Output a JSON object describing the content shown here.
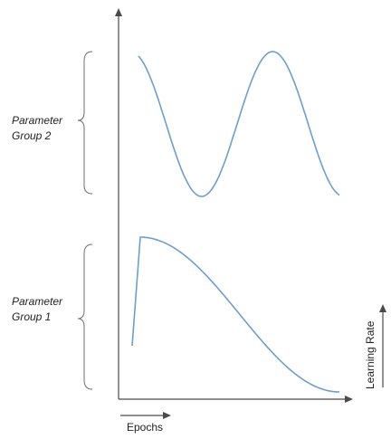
{
  "chart_data": [
    {
      "type": "line",
      "title": "",
      "group_label": [
        "Parameter",
        "Group 2"
      ],
      "series": [
        {
          "shape": "cosine wave",
          "color": "#6a9fd0"
        }
      ]
    },
    {
      "type": "line",
      "title": "",
      "group_label": [
        "Parameter",
        "Group 1"
      ],
      "series": [
        {
          "shape": "linear warmup then cosine decay",
          "color": "#6a9fd0"
        }
      ]
    }
  ],
  "axes": {
    "xlabel": "Epochs",
    "ylabel": "Learning Rate",
    "color": "#4a4a4a"
  }
}
